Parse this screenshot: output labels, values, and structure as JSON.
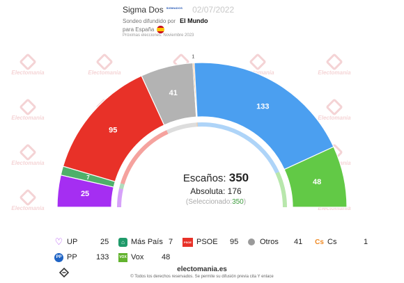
{
  "header": {
    "pollster": "Sigma Dos",
    "pollster_logo_text": "SIGMADOS",
    "date": "02/07/2022",
    "published_prefix": "Sondeo difundido por",
    "media": "El Mundo",
    "scope": "para España",
    "next_election": "Próximas elecciones: Noviembre 2023"
  },
  "watermark_text": "Electomania",
  "chart_data": {
    "type": "pie",
    "subtype": "hemicycle",
    "total_label": "Escaños:",
    "total": 350,
    "majority_label": "Absoluta:",
    "majority": 176,
    "selected_label": "(Seleccionado:",
    "selected": "350",
    "selected_suffix": ")",
    "parties": [
      {
        "name": "UP",
        "seats": 25,
        "color": "#a52ef2"
      },
      {
        "name": "Más País",
        "seats": 7,
        "color": "#4fb06a"
      },
      {
        "name": "PSOE",
        "seats": 95,
        "color": "#e83128"
      },
      {
        "name": "Otros",
        "seats": 41,
        "color": "#b3b3b3"
      },
      {
        "name": "Cs",
        "seats": 1,
        "color": "#f08a24"
      },
      {
        "name": "PP",
        "seats": 133,
        "color": "#4b9ff0"
      },
      {
        "name": "Vox",
        "seats": 48,
        "color": "#62c946"
      }
    ]
  },
  "legend": [
    {
      "name": "UP",
      "value": "25",
      "icon": "up-heart-icon",
      "color": "#a52ef2"
    },
    {
      "name": "Más País",
      "value": "7",
      "icon": "mas-pais-icon",
      "color": "#1f9a6a"
    },
    {
      "name": "PSOE",
      "value": "95",
      "icon": "psoe-icon",
      "color": "#e83128",
      "icon_text": "PSOE"
    },
    {
      "name": "Otros",
      "value": "41",
      "icon": "gray-dot-icon",
      "color": "#9a9a9a"
    },
    {
      "name": "Cs",
      "value": "1",
      "icon": "cs-icon",
      "color": "#f08a24",
      "icon_text": "Cs"
    },
    {
      "name": "PP",
      "value": "133",
      "icon": "pp-icon",
      "color": "#1e63c4",
      "icon_text": "PP"
    },
    {
      "name": "Vox",
      "value": "48",
      "icon": "vox-icon",
      "color": "#62b32e",
      "icon_text": "VOX"
    }
  ],
  "footer": {
    "site": "electomania.es",
    "rights": "© Todos los derechos reservados. Se permite su difusión previa cita Y enlace"
  }
}
